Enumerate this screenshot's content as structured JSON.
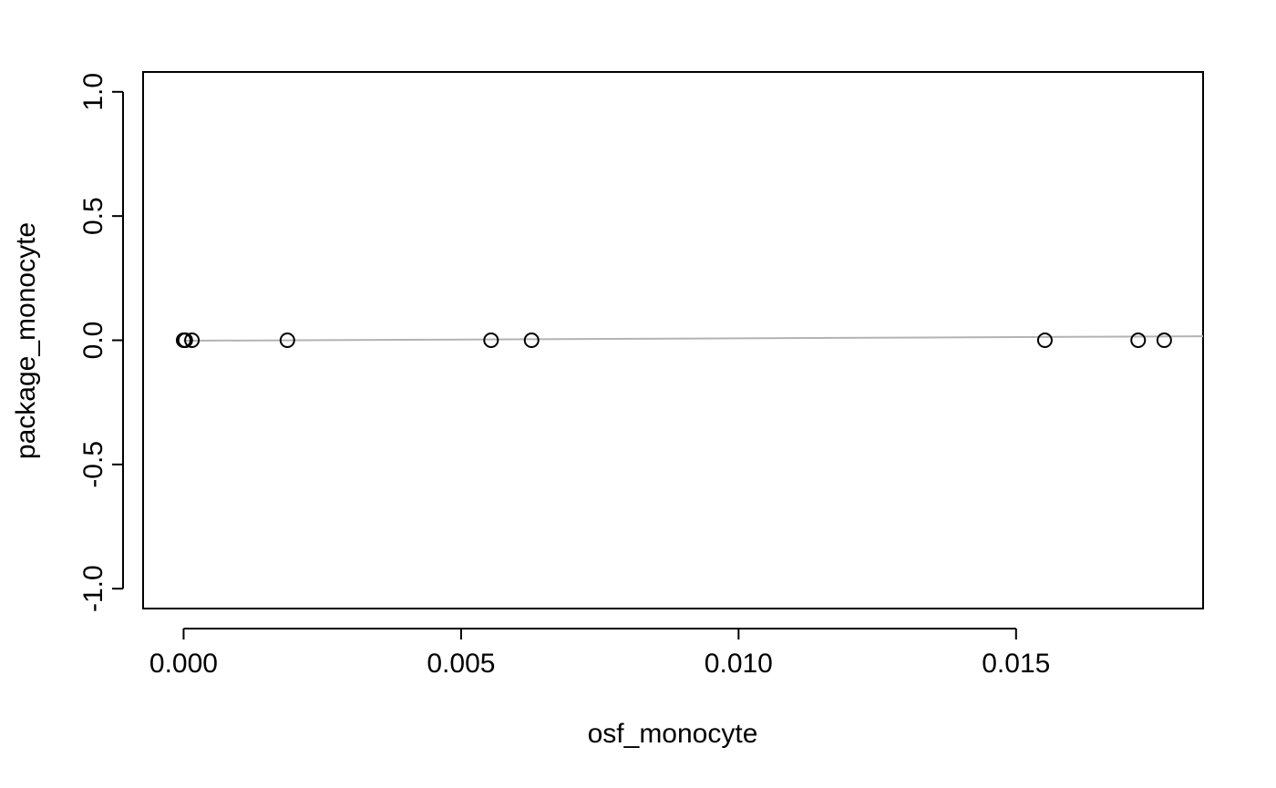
{
  "chart_data": {
    "type": "scatter",
    "title": "",
    "xlabel": "osf_monocyte",
    "ylabel": "package_monocyte",
    "xlim": [
      -0.00073,
      0.01837
    ],
    "ylim": [
      -1.08,
      1.08
    ],
    "x_ticks": [
      0.0,
      0.005,
      0.01,
      0.015
    ],
    "x_tick_labels": [
      "0.000",
      "0.005",
      "0.010",
      "0.015"
    ],
    "y_ticks": [
      -1.0,
      -0.5,
      0.0,
      0.5,
      1.0
    ],
    "y_tick_labels": [
      "-1.0",
      "-0.5",
      "0.0",
      "0.5",
      "1.0"
    ],
    "grid": false,
    "legend": "none",
    "points": [
      {
        "x": 0.0,
        "y": 0.0
      },
      {
        "x": 1e-05,
        "y": 0.0
      },
      {
        "x": 2e-05,
        "y": 0.0
      },
      {
        "x": 3e-05,
        "y": 0.0
      },
      {
        "x": 0.00015,
        "y": 0.0
      },
      {
        "x": 0.00187,
        "y": 0.0
      },
      {
        "x": 0.00554,
        "y": 0.0
      },
      {
        "x": 0.00627,
        "y": 0.0
      },
      {
        "x": 0.01552,
        "y": 0.0
      },
      {
        "x": 0.0172,
        "y": 0.0
      },
      {
        "x": 0.01767,
        "y": 0.0
      }
    ],
    "trend_line": {
      "x": [
        0.0,
        0.01837
      ],
      "y": [
        -0.002,
        0.016
      ],
      "color": "#b3b3b3"
    },
    "colors": {
      "points": "#000000",
      "trend_line": "#b3b3b3"
    }
  }
}
